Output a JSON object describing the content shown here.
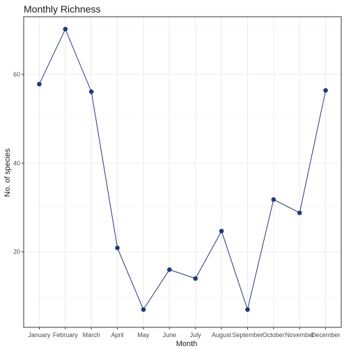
{
  "chart_data": {
    "type": "line",
    "title": "Monthly Richness",
    "xlabel": "Month",
    "ylabel": "No. of species",
    "categories": [
      "January",
      "February",
      "March",
      "April",
      "May",
      "June",
      "July",
      "August",
      "September",
      "October",
      "November",
      "December"
    ],
    "series": [
      {
        "values": [
          57.8,
          70.2,
          56.1,
          20.9,
          7.0,
          16.0,
          14.0,
          24.7,
          7.0,
          31.8,
          28.8,
          56.4
        ]
      }
    ],
    "ylim": [
      3,
      73
    ],
    "yticks": [
      20,
      40,
      60
    ],
    "grid": true,
    "colors": {
      "line": "#1f3a7a",
      "point": "#1f3a7a",
      "grid_major": "#ebebeb",
      "grid_minor": "#f5f5f5",
      "panel_border": "#333333"
    }
  }
}
